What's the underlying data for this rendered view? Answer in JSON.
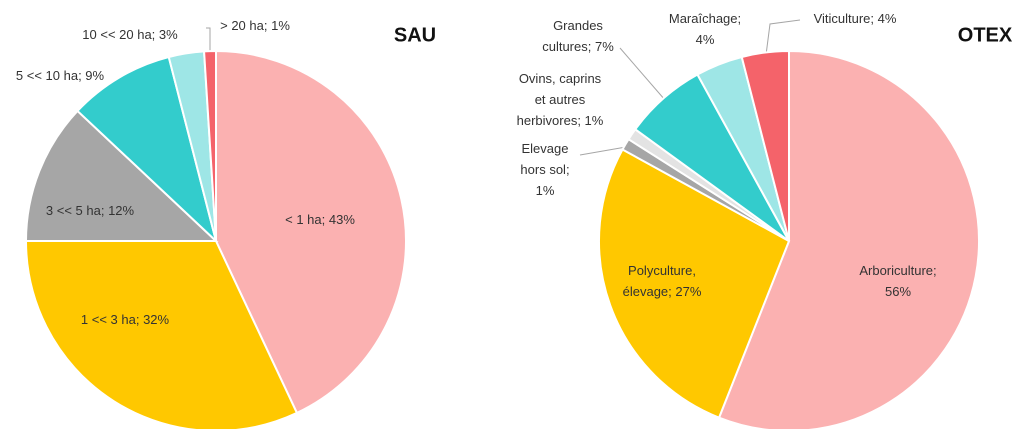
{
  "chart_data": [
    {
      "type": "pie",
      "title": "SAU",
      "labels": [
        "< 1 ha; 43%",
        "1 << 3 ha; 32%",
        "3 << 5 ha; 12%",
        "5 << 10 ha; 9%",
        "10 << 20 ha; 3%",
        "> 20 ha; 1%"
      ],
      "values": [
        43,
        32,
        12,
        9,
        3,
        1
      ],
      "colors": [
        "#fbb1b1",
        "#ffc800",
        "#a6a6a6",
        "#33cccc",
        "#9ee6e6",
        "#f4636a"
      ]
    },
    {
      "type": "pie",
      "title": "OTEX",
      "labels": [
        "Arboriculture;\n56%",
        "Polyculture,\nélevage; 27%",
        "Elevage\nhors sol;\n1%",
        "Ovins, caprins\net autres\nherbivores; 1%",
        "Grandes\ncultures; 7%",
        "Maraîchage;\n4%",
        "Viticulture; 4%"
      ],
      "values": [
        56,
        27,
        1,
        1,
        7,
        4,
        4
      ],
      "colors": [
        "#fbb1b1",
        "#ffc800",
        "#a6a6a6",
        "#e3e3e3",
        "#33cccc",
        "#9ee6e6",
        "#f4636a"
      ]
    }
  ]
}
